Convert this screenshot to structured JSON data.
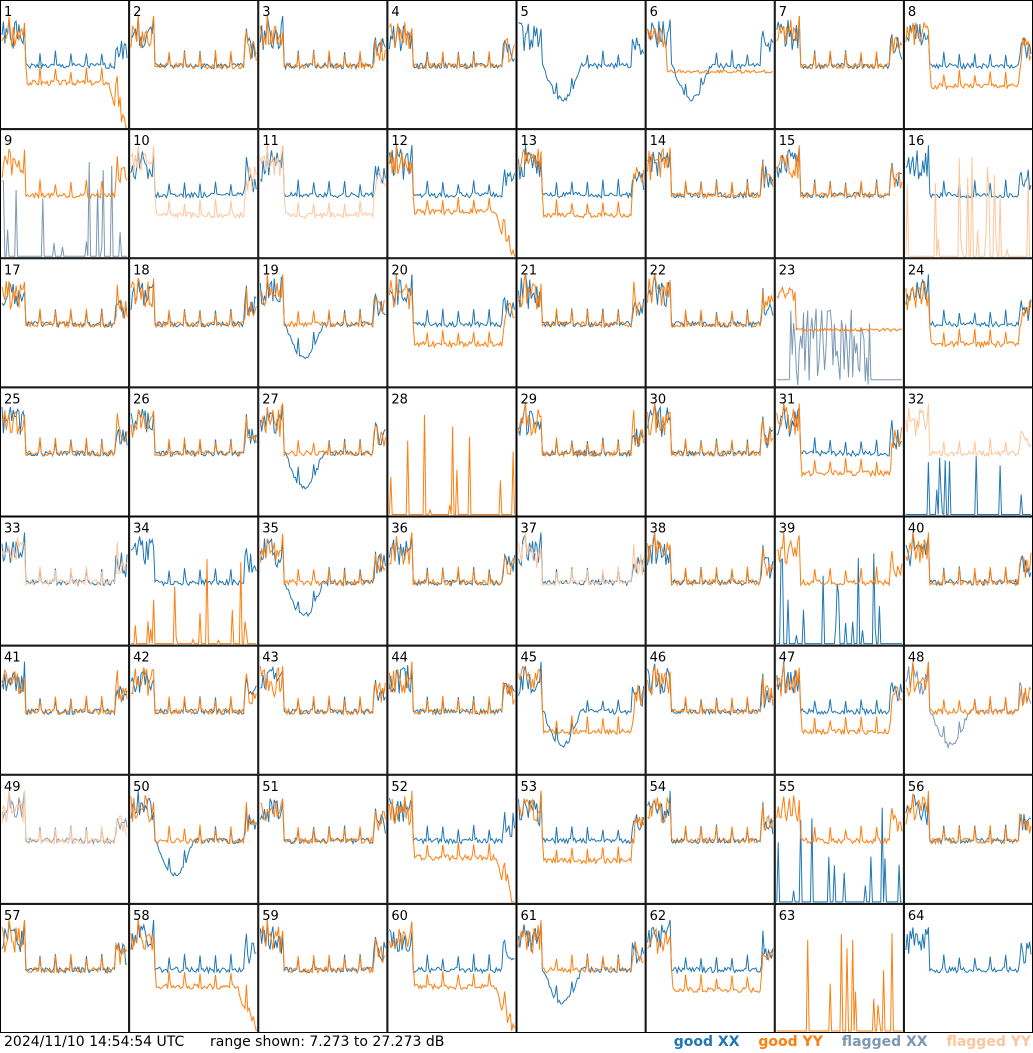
{
  "chart_data": {
    "type": "line",
    "subtype": "small-multiples",
    "grid": {
      "rows": 8,
      "cols": 8
    },
    "panel_labels": [
      "1",
      "2",
      "3",
      "4",
      "5",
      "6",
      "7",
      "8",
      "9",
      "10",
      "11",
      "12",
      "13",
      "14",
      "15",
      "16",
      "17",
      "18",
      "19",
      "20",
      "21",
      "22",
      "23",
      "24",
      "25",
      "26",
      "27",
      "28",
      "29",
      "30",
      "31",
      "32",
      "33",
      "34",
      "35",
      "36",
      "37",
      "38",
      "39",
      "40",
      "41",
      "42",
      "43",
      "44",
      "45",
      "46",
      "47",
      "48",
      "49",
      "50",
      "51",
      "52",
      "53",
      "54",
      "55",
      "56",
      "57",
      "58",
      "59",
      "60",
      "61",
      "62",
      "63",
      "64"
    ],
    "y_range_db": [
      7.273,
      27.273
    ],
    "x": "frequency channel (unlabeled)",
    "series": [
      {
        "name": "good XX",
        "color": "#1f77b4"
      },
      {
        "name": "good YY",
        "color": "#ff7f0e"
      },
      {
        "name": "flagged XX",
        "color": "#7b98b4"
      },
      {
        "name": "flagged YY",
        "color": "#ffc59a"
      }
    ],
    "panels": [
      {
        "id": 1,
        "xx": "normal",
        "yy": "drop",
        "xx_status": "good",
        "yy_status": "good"
      },
      {
        "id": 2,
        "xx": "normal",
        "yy": "normal",
        "xx_status": "good",
        "yy_status": "good"
      },
      {
        "id": 3,
        "xx": "normal",
        "yy": "normal",
        "xx_status": "good",
        "yy_status": "good"
      },
      {
        "id": 4,
        "xx": "normal",
        "yy": "normal",
        "xx_status": "good",
        "yy_status": "good"
      },
      {
        "id": 5,
        "xx": "dip",
        "yy": "none",
        "xx_status": "good",
        "yy_status": "good"
      },
      {
        "id": 6,
        "xx": "dip",
        "yy": "flat",
        "xx_status": "good",
        "yy_status": "good"
      },
      {
        "id": 7,
        "xx": "normal",
        "yy": "normal",
        "xx_status": "good",
        "yy_status": "good"
      },
      {
        "id": 8,
        "xx": "normal",
        "yy": "low",
        "xx_status": "good",
        "yy_status": "good"
      },
      {
        "id": 9,
        "xx": "spikes",
        "yy": "normal",
        "xx_status": "flagged",
        "yy_status": "good"
      },
      {
        "id": 10,
        "xx": "normal",
        "yy": "low",
        "xx_status": "good",
        "yy_status": "flagged"
      },
      {
        "id": 11,
        "xx": "normal",
        "yy": "low",
        "xx_status": "good",
        "yy_status": "flagged"
      },
      {
        "id": 12,
        "xx": "normal",
        "yy": "drop",
        "xx_status": "good",
        "yy_status": "good"
      },
      {
        "id": 13,
        "xx": "normal",
        "yy": "low",
        "xx_status": "good",
        "yy_status": "good"
      },
      {
        "id": 14,
        "xx": "normal",
        "yy": "normal",
        "xx_status": "good",
        "yy_status": "good"
      },
      {
        "id": 15,
        "xx": "normal",
        "yy": "normal",
        "xx_status": "good",
        "yy_status": "good"
      },
      {
        "id": 16,
        "xx": "normal",
        "yy": "spikes",
        "xx_status": "good",
        "yy_status": "flagged"
      },
      {
        "id": 17,
        "xx": "normal",
        "yy": "normal",
        "xx_status": "good",
        "yy_status": "good"
      },
      {
        "id": 18,
        "xx": "normal",
        "yy": "normal",
        "xx_status": "good",
        "yy_status": "good"
      },
      {
        "id": 19,
        "xx": "dip",
        "yy": "normal",
        "xx_status": "good",
        "yy_status": "good"
      },
      {
        "id": 20,
        "xx": "normal",
        "yy": "low",
        "xx_status": "good",
        "yy_status": "good"
      },
      {
        "id": 21,
        "xx": "normal",
        "yy": "normal",
        "xx_status": "good",
        "yy_status": "good"
      },
      {
        "id": 22,
        "xx": "normal",
        "yy": "normal",
        "xx_status": "good",
        "yy_status": "good"
      },
      {
        "id": 23,
        "xx": "noisy",
        "yy": "flat",
        "xx_status": "flagged",
        "yy_status": "good"
      },
      {
        "id": 24,
        "xx": "normal",
        "yy": "low",
        "xx_status": "good",
        "yy_status": "good"
      },
      {
        "id": 25,
        "xx": "normal",
        "yy": "normal",
        "xx_status": "good",
        "yy_status": "good"
      },
      {
        "id": 26,
        "xx": "normal",
        "yy": "normal",
        "xx_status": "good",
        "yy_status": "good"
      },
      {
        "id": 27,
        "xx": "dip",
        "yy": "normal",
        "xx_status": "good",
        "yy_status": "good"
      },
      {
        "id": 28,
        "xx": "none",
        "yy": "spikes",
        "xx_status": "good",
        "yy_status": "good"
      },
      {
        "id": 29,
        "xx": "normal",
        "yy": "normal",
        "xx_status": "good",
        "yy_status": "good"
      },
      {
        "id": 30,
        "xx": "normal",
        "yy": "normal",
        "xx_status": "good",
        "yy_status": "good"
      },
      {
        "id": 31,
        "xx": "normal",
        "yy": "low",
        "xx_status": "good",
        "yy_status": "good"
      },
      {
        "id": 32,
        "xx": "spikes",
        "yy": "normal",
        "xx_status": "good",
        "yy_status": "flagged"
      },
      {
        "id": 33,
        "xx": "normal",
        "yy": "normal",
        "xx_status": "good",
        "yy_status": "flagged"
      },
      {
        "id": 34,
        "xx": "normal",
        "yy": "spikes",
        "xx_status": "good",
        "yy_status": "good"
      },
      {
        "id": 35,
        "xx": "dip",
        "yy": "normal",
        "xx_status": "good",
        "yy_status": "good"
      },
      {
        "id": 36,
        "xx": "normal",
        "yy": "normal",
        "xx_status": "good",
        "yy_status": "good"
      },
      {
        "id": 37,
        "xx": "normal",
        "yy": "normal",
        "xx_status": "good",
        "yy_status": "flagged"
      },
      {
        "id": 38,
        "xx": "normal",
        "yy": "normal",
        "xx_status": "good",
        "yy_status": "good"
      },
      {
        "id": 39,
        "xx": "spikes",
        "yy": "normal",
        "xx_status": "good",
        "yy_status": "good"
      },
      {
        "id": 40,
        "xx": "normal",
        "yy": "normal",
        "xx_status": "good",
        "yy_status": "good"
      },
      {
        "id": 41,
        "xx": "normal",
        "yy": "normal",
        "xx_status": "good",
        "yy_status": "good"
      },
      {
        "id": 42,
        "xx": "normal",
        "yy": "normal",
        "xx_status": "good",
        "yy_status": "good"
      },
      {
        "id": 43,
        "xx": "normal",
        "yy": "normal",
        "xx_status": "good",
        "yy_status": "good"
      },
      {
        "id": 44,
        "xx": "normal",
        "yy": "normal",
        "xx_status": "good",
        "yy_status": "good"
      },
      {
        "id": 45,
        "xx": "dip",
        "yy": "low",
        "xx_status": "good",
        "yy_status": "good"
      },
      {
        "id": 46,
        "xx": "normal",
        "yy": "normal",
        "xx_status": "good",
        "yy_status": "good"
      },
      {
        "id": 47,
        "xx": "normal",
        "yy": "low",
        "xx_status": "good",
        "yy_status": "good"
      },
      {
        "id": 48,
        "xx": "dip",
        "yy": "normal",
        "xx_status": "flagged",
        "yy_status": "good"
      },
      {
        "id": 49,
        "xx": "normal",
        "yy": "normal",
        "xx_status": "flagged",
        "yy_status": "flagged"
      },
      {
        "id": 50,
        "xx": "dip",
        "yy": "normal",
        "xx_status": "good",
        "yy_status": "good"
      },
      {
        "id": 51,
        "xx": "normal",
        "yy": "normal",
        "xx_status": "good",
        "yy_status": "good"
      },
      {
        "id": 52,
        "xx": "normal",
        "yy": "drop",
        "xx_status": "good",
        "yy_status": "good"
      },
      {
        "id": 53,
        "xx": "normal",
        "yy": "low",
        "xx_status": "good",
        "yy_status": "good"
      },
      {
        "id": 54,
        "xx": "normal",
        "yy": "normal",
        "xx_status": "good",
        "yy_status": "good"
      },
      {
        "id": 55,
        "xx": "spikes",
        "yy": "normal",
        "xx_status": "good",
        "yy_status": "good"
      },
      {
        "id": 56,
        "xx": "normal",
        "yy": "normal",
        "xx_status": "good",
        "yy_status": "good"
      },
      {
        "id": 57,
        "xx": "normal",
        "yy": "normal",
        "xx_status": "good",
        "yy_status": "good"
      },
      {
        "id": 58,
        "xx": "normal",
        "yy": "drop",
        "xx_status": "good",
        "yy_status": "good"
      },
      {
        "id": 59,
        "xx": "normal",
        "yy": "normal",
        "xx_status": "good",
        "yy_status": "good"
      },
      {
        "id": 60,
        "xx": "normal",
        "yy": "drop",
        "xx_status": "good",
        "yy_status": "good"
      },
      {
        "id": 61,
        "xx": "dip",
        "yy": "normal",
        "xx_status": "good",
        "yy_status": "good"
      },
      {
        "id": 62,
        "xx": "normal",
        "yy": "low",
        "xx_status": "good",
        "yy_status": "good"
      },
      {
        "id": 63,
        "xx": "none",
        "yy": "spikes",
        "xx_status": "good",
        "yy_status": "good"
      },
      {
        "id": 64,
        "xx": "normal",
        "yy": "none",
        "xx_status": "good",
        "yy_status": "good"
      }
    ]
  },
  "footer": {
    "timestamp": "2024/11/10 14:54:54 UTC",
    "range_text": "range shown: 7.273 to 27.273 dB",
    "legend": {
      "good_xx": "good XX",
      "good_yy": "good YY",
      "flagged_xx": "flagged XX",
      "flagged_yy": "flagged YY"
    }
  }
}
